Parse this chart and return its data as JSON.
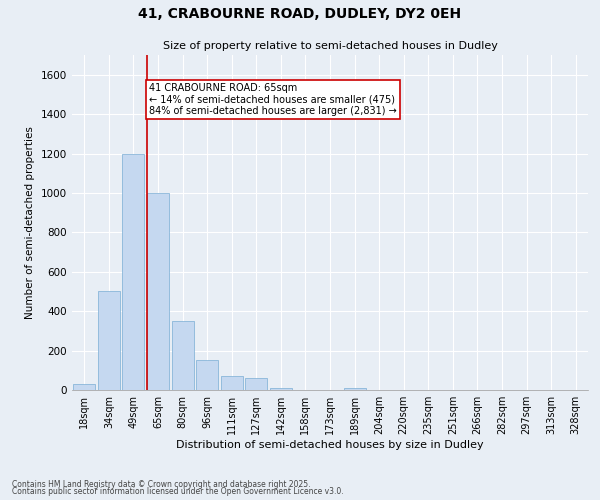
{
  "title_line1": "41, CRABOURNE ROAD, DUDLEY, DY2 0EH",
  "title_line2": "Size of property relative to semi-detached houses in Dudley",
  "xlabel": "Distribution of semi-detached houses by size in Dudley",
  "ylabel": "Number of semi-detached properties",
  "categories": [
    "18sqm",
    "34sqm",
    "49sqm",
    "65sqm",
    "80sqm",
    "96sqm",
    "111sqm",
    "127sqm",
    "142sqm",
    "158sqm",
    "173sqm",
    "189sqm",
    "204sqm",
    "220sqm",
    "235sqm",
    "251sqm",
    "266sqm",
    "282sqm",
    "297sqm",
    "313sqm",
    "328sqm"
  ],
  "bar_values": [
    30,
    500,
    1200,
    1000,
    350,
    150,
    70,
    60,
    10,
    0,
    0,
    10,
    0,
    0,
    0,
    0,
    0,
    0,
    0,
    0,
    0
  ],
  "bar_color": "#c5d8f0",
  "bar_edge_color": "#7aadd4",
  "vline_x_index": 3,
  "vline_color": "#cc0000",
  "annotation_text": "41 CRABOURNE ROAD: 65sqm\n← 14% of semi-detached houses are smaller (475)\n84% of semi-detached houses are larger (2,831) →",
  "annotation_box_color": "#ffffff",
  "annotation_border_color": "#cc0000",
  "ylim": [
    0,
    1700
  ],
  "yticks": [
    0,
    200,
    400,
    600,
    800,
    1000,
    1200,
    1400,
    1600
  ],
  "background_color": "#e8eef5",
  "grid_color": "#ffffff",
  "footer_line1": "Contains HM Land Registry data © Crown copyright and database right 2025.",
  "footer_line2": "Contains public sector information licensed under the Open Government Licence v3.0."
}
